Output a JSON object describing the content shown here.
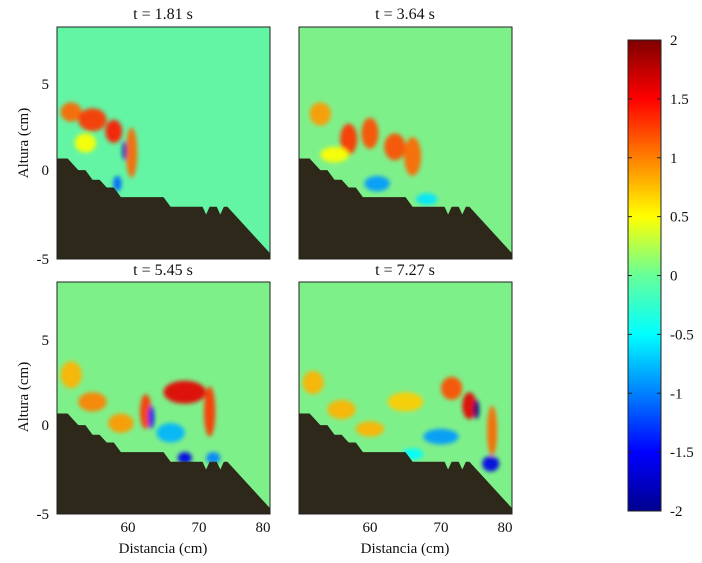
{
  "chart_data": {
    "type": "heatmap",
    "panels": [
      {
        "title": "t = 1.81 s",
        "blobs": [
          {
            "x": 52,
            "y": 2.6,
            "rx": 1.5,
            "ry": 0.5,
            "v": 1.1
          },
          {
            "x": 55,
            "y": 2.2,
            "rx": 2.0,
            "ry": 0.6,
            "v": 1.3
          },
          {
            "x": 58,
            "y": 1.6,
            "rx": 1.2,
            "ry": 0.6,
            "v": 1.4
          },
          {
            "x": 60.5,
            "y": 0.5,
            "rx": 0.8,
            "ry": 1.3,
            "v": 1.1
          },
          {
            "x": 59.5,
            "y": 0.6,
            "rx": 0.3,
            "ry": 0.5,
            "v": -1.8
          },
          {
            "x": 58.5,
            "y": -1.1,
            "rx": 0.6,
            "ry": 0.4,
            "v": -1.1
          },
          {
            "x": 54,
            "y": 1.0,
            "rx": 1.5,
            "ry": 0.5,
            "v": 0.5
          }
        ]
      },
      {
        "title": "t = 3.64 s",
        "blobs": [
          {
            "x": 53,
            "y": 2.5,
            "rx": 1.5,
            "ry": 0.6,
            "v": 0.9
          },
          {
            "x": 57,
            "y": 1.2,
            "rx": 1.2,
            "ry": 0.8,
            "v": 1.3
          },
          {
            "x": 60,
            "y": 1.5,
            "rx": 1.2,
            "ry": 0.8,
            "v": 1.2
          },
          {
            "x": 63.5,
            "y": 0.8,
            "rx": 1.5,
            "ry": 0.7,
            "v": 1.2
          },
          {
            "x": 66,
            "y": 0.3,
            "rx": 1.2,
            "ry": 1.0,
            "v": 1.1
          },
          {
            "x": 61,
            "y": -1.1,
            "rx": 1.8,
            "ry": 0.4,
            "v": -0.9
          },
          {
            "x": 68,
            "y": -1.9,
            "rx": 1.5,
            "ry": 0.3,
            "v": -0.6
          },
          {
            "x": 55,
            "y": 0.4,
            "rx": 2.0,
            "ry": 0.4,
            "v": 0.5
          }
        ]
      },
      {
        "title": "t = 5.45 s",
        "blobs": [
          {
            "x": 52,
            "y": 2.2,
            "rx": 1.5,
            "ry": 0.7,
            "v": 0.8
          },
          {
            "x": 55,
            "y": 0.8,
            "rx": 2.0,
            "ry": 0.5,
            "v": 1.0
          },
          {
            "x": 59,
            "y": -0.3,
            "rx": 1.8,
            "ry": 0.5,
            "v": 0.9
          },
          {
            "x": 62.5,
            "y": 0.3,
            "rx": 0.8,
            "ry": 0.9,
            "v": 1.3
          },
          {
            "x": 63.3,
            "y": 0.0,
            "rx": 0.4,
            "ry": 0.6,
            "v": -1.4
          },
          {
            "x": 68,
            "y": 1.3,
            "rx": 3.0,
            "ry": 0.6,
            "v": 1.6
          },
          {
            "x": 71.5,
            "y": 0.3,
            "rx": 0.8,
            "ry": 1.3,
            "v": 1.3
          },
          {
            "x": 66,
            "y": -0.8,
            "rx": 2.0,
            "ry": 0.5,
            "v": -0.8
          },
          {
            "x": 68,
            "y": -2.1,
            "rx": 1.0,
            "ry": 0.3,
            "v": -1.6
          },
          {
            "x": 72,
            "y": -2.1,
            "rx": 1.0,
            "ry": 0.3,
            "v": -1.0
          }
        ]
      },
      {
        "title": "t = 7.27 s",
        "blobs": [
          {
            "x": 52,
            "y": 1.8,
            "rx": 1.5,
            "ry": 0.6,
            "v": 0.8
          },
          {
            "x": 56,
            "y": 0.4,
            "rx": 2.0,
            "ry": 0.5,
            "v": 0.8
          },
          {
            "x": 60,
            "y": -0.6,
            "rx": 2.0,
            "ry": 0.4,
            "v": 0.8
          },
          {
            "x": 65,
            "y": 0.8,
            "rx": 2.5,
            "ry": 0.5,
            "v": 0.7
          },
          {
            "x": 71.5,
            "y": 1.5,
            "rx": 1.5,
            "ry": 0.6,
            "v": 1.2
          },
          {
            "x": 74,
            "y": 0.6,
            "rx": 1.0,
            "ry": 0.7,
            "v": 1.6
          },
          {
            "x": 75,
            "y": 0.4,
            "rx": 0.4,
            "ry": 0.5,
            "v": -2.0
          },
          {
            "x": 77.2,
            "y": -0.7,
            "rx": 0.7,
            "ry": 1.3,
            "v": 1.1
          },
          {
            "x": 70,
            "y": -1.0,
            "rx": 2.5,
            "ry": 0.4,
            "v": -0.9
          },
          {
            "x": 77,
            "y": -2.4,
            "rx": 1.2,
            "ry": 0.4,
            "v": -1.6
          },
          {
            "x": 66,
            "y": -1.9,
            "rx": 1.5,
            "ry": 0.3,
            "v": -0.5
          }
        ]
      }
    ],
    "xlabel": "Distancia (cm)",
    "ylabel": "Altura (cm)",
    "xlim": [
      50,
      80
    ],
    "ylim": [
      -5,
      7
    ],
    "xticks": [
      60,
      70,
      80
    ],
    "yticks": [
      -5,
      0,
      5
    ],
    "bed_profile": [
      [
        50,
        0.2
      ],
      [
        51.5,
        0.2
      ],
      [
        53,
        -0.4
      ],
      [
        54,
        -0.4
      ],
      [
        55,
        -0.9
      ],
      [
        56,
        -0.9
      ],
      [
        57,
        -1.3
      ],
      [
        58,
        -1.3
      ],
      [
        59,
        -1.8
      ],
      [
        60,
        -1.8
      ],
      [
        65,
        -1.8
      ],
      [
        66,
        -2.3
      ],
      [
        70.5,
        -2.3
      ],
      [
        71,
        -2.7
      ],
      [
        71.5,
        -2.3
      ],
      [
        72.5,
        -2.3
      ],
      [
        73,
        -2.7
      ],
      [
        73.5,
        -2.3
      ],
      [
        74,
        -2.3
      ],
      [
        75,
        -2.7
      ],
      [
        76,
        -3.1
      ],
      [
        77,
        -3.5
      ],
      [
        78,
        -3.9
      ],
      [
        79,
        -4.3
      ],
      [
        80,
        -4.7
      ],
      [
        80,
        -5
      ],
      [
        50,
        -5
      ]
    ],
    "bed_color": "#2d2819",
    "colorbar": {
      "range": [
        -2,
        2
      ],
      "ticks": [
        "2",
        "1.5",
        "1",
        "0.5",
        "0",
        "-0.5",
        "-1",
        "-1.5",
        "-2"
      ],
      "colormap": "jet"
    }
  }
}
